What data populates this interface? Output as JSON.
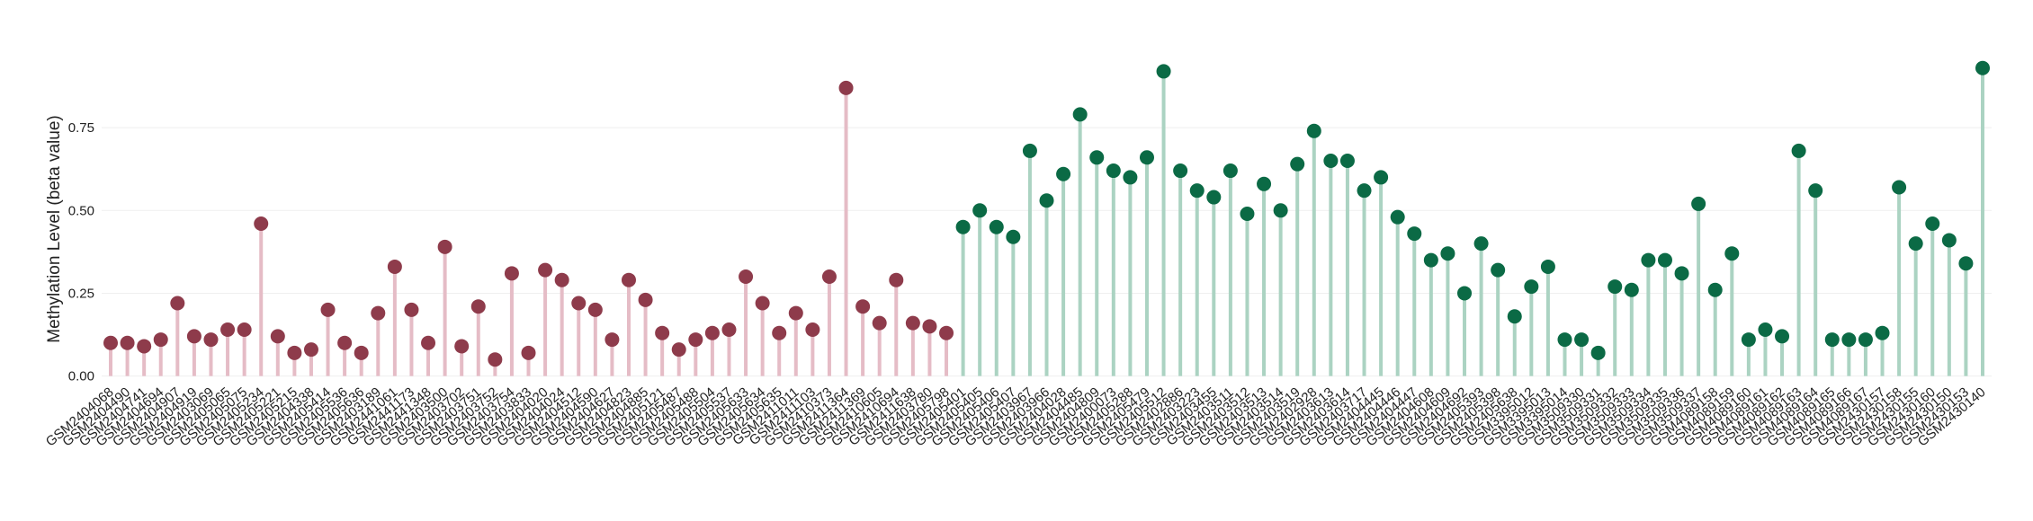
{
  "chart_data": {
    "type": "lollipop",
    "y_label": "Methylation Level (beta value)",
    "categories": [
      "GSM2404068",
      "GSM2404490",
      "GSM2404741",
      "GSM2404694",
      "GSM2404907",
      "GSM2404919",
      "GSM2403069",
      "GSM2405065",
      "GSM2405075",
      "GSM2405234",
      "GSM2405221",
      "GSM2405215",
      "GSM2404338",
      "GSM2405414",
      "GSM2405536",
      "GSM2405636",
      "GSM2403189",
      "GSM2441061",
      "GSM2441173",
      "GSM2441348",
      "GSM2403500",
      "GSM2403702",
      "GSM2403751",
      "GSM2403752",
      "GSM2403754",
      "GSM2403833",
      "GSM2404020",
      "GSM2404024",
      "GSM2404512",
      "GSM2404590",
      "GSM2404627",
      "GSM2404823",
      "GSM2404885",
      "GSM2405121",
      "GSM2405487",
      "GSM2405488",
      "GSM2405504",
      "GSM2405537",
      "GSM2405633",
      "GSM2405634",
      "GSM2405635",
      "GSM2411011",
      "GSM2411103",
      "GSM2410373",
      "GSM2411364",
      "GSM2411369",
      "GSM2410605",
      "GSM2410694",
      "GSM2411638",
      "GSM2403780",
      "GSM2405798",
      "GSM2405401",
      "GSM2405405",
      "GSM2405406",
      "GSM2405407",
      "GSM2403967",
      "GSM2403966",
      "GSM2404028",
      "GSM2404485",
      "GSM2404809",
      "GSM2400073",
      "GSM2405288",
      "GSM2405479",
      "GSM2405512",
      "GSM2402886",
      "GSM2403223",
      "GSM2403455",
      "GSM2403511",
      "GSM2403512",
      "GSM2403513",
      "GSM2403514",
      "GSM2403519",
      "GSM2402928",
      "GSM2403613",
      "GSM2403614",
      "GSM2403717",
      "GSM2404445",
      "GSM2404446",
      "GSM2404447",
      "GSM2404608",
      "GSM2404609",
      "GSM2404692",
      "GSM2405393",
      "GSM2405398",
      "GSM2405638",
      "GSM3395012",
      "GSM3395013",
      "GSM3395014",
      "GSM3509330",
      "GSM3509331",
      "GSM3509332",
      "GSM3509333",
      "GSM3509334",
      "GSM3509335",
      "GSM3509336",
      "GSM3509337",
      "GSM4089158",
      "GSM4089159",
      "GSM4089160",
      "GSM4089161",
      "GSM4089162",
      "GSM4089163",
      "GSM4089164",
      "GSM4089165",
      "GSM4089166",
      "GSM4089167",
      "GSM2430157",
      "GSM2430158",
      "GSM2430155",
      "GSM2430160",
      "GSM2430150",
      "GSM2430153",
      "GSM2430140"
    ],
    "series": [
      {
        "color": "#8e3b4b",
        "stem_color": "#e5bcc6",
        "values": [
          0.1,
          0.1,
          0.09,
          0.11,
          0.22,
          0.12,
          0.11,
          0.14,
          0.14,
          0.46,
          0.12,
          0.07,
          0.08,
          0.2,
          0.1,
          0.07,
          0.19,
          0.33,
          0.2,
          0.1,
          0.39,
          0.09,
          0.21,
          0.05,
          0.31,
          0.07,
          0.32,
          0.29,
          0.22,
          0.2,
          0.11,
          0.29,
          0.23,
          0.13,
          0.08,
          0.11,
          0.13,
          0.14,
          0.3,
          0.22,
          0.13,
          0.19,
          0.14,
          0.3,
          0.87,
          0.21,
          0.16,
          0.29,
          0.16,
          0.15,
          0.13,
          null,
          null,
          null,
          null,
          null,
          null,
          null,
          null,
          null,
          null,
          null,
          null,
          null,
          null,
          null,
          null,
          null,
          null,
          null,
          null,
          null,
          null,
          null,
          null,
          null,
          null,
          null,
          null,
          null,
          null,
          null,
          null,
          null,
          null,
          null,
          null,
          null,
          null,
          null,
          null,
          null,
          null,
          null,
          null,
          null,
          null,
          null,
          null,
          null,
          null,
          null,
          null,
          null,
          null,
          null,
          null,
          null,
          null,
          null,
          null,
          null,
          null
        ]
      },
      {
        "color": "#0b6a45",
        "stem_color": "#abd3c2",
        "values": [
          null,
          null,
          null,
          null,
          null,
          null,
          null,
          null,
          null,
          null,
          null,
          null,
          null,
          null,
          null,
          null,
          null,
          null,
          null,
          null,
          null,
          null,
          null,
          null,
          null,
          null,
          null,
          null,
          null,
          null,
          null,
          null,
          null,
          null,
          null,
          null,
          null,
          null,
          null,
          null,
          null,
          null,
          null,
          null,
          null,
          null,
          null,
          null,
          null,
          null,
          null,
          0.45,
          0.5,
          0.45,
          0.42,
          0.68,
          0.53,
          0.61,
          0.79,
          0.66,
          0.62,
          0.6,
          0.66,
          0.92,
          0.62,
          0.56,
          0.54,
          0.62,
          0.49,
          0.58,
          0.5,
          0.64,
          0.74,
          0.65,
          0.65,
          0.56,
          0.6,
          0.48,
          0.43,
          0.35,
          0.37,
          0.25,
          0.4,
          0.32,
          0.18,
          0.27,
          0.33,
          0.11,
          0.11,
          0.07,
          0.27,
          0.26,
          0.35,
          0.35,
          0.31,
          0.52,
          0.26,
          0.37,
          0.11,
          0.14,
          0.12,
          0.68,
          0.56,
          0.11,
          0.11,
          0.11,
          0.13,
          0.57,
          0.4,
          0.46,
          0.41,
          0.34,
          0.93
        ]
      }
    ],
    "ylim": [
      -0.02,
      0.97
    ],
    "yticks": [
      {
        "value": 0,
        "label": "0.00"
      },
      {
        "value": 0.25,
        "label": "0.25"
      },
      {
        "value": 0.5,
        "label": "0.50"
      },
      {
        "value": 0.75,
        "label": "0.75"
      }
    ],
    "grid": true
  }
}
